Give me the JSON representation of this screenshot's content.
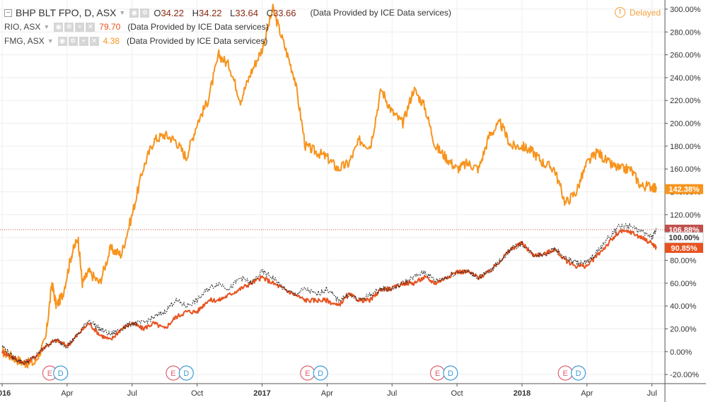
{
  "legend": {
    "main": {
      "collapse_icon": "−",
      "symbol": "BHP BLT FPO, D, ASX",
      "ohlc": [
        {
          "k": "O",
          "v": "34.22"
        },
        {
          "k": "H",
          "v": "34.22"
        },
        {
          "k": "L",
          "v": "33.64"
        },
        {
          "k": "C",
          "v": "33.66"
        }
      ],
      "source": "(Data Provided by ICE Data services)"
    },
    "rio": {
      "symbol": "RIO, ASX",
      "value": "79.70",
      "source": "(Data Provided by ICE Data services)"
    },
    "fmg": {
      "symbol": "FMG, ASX",
      "value": "4.38",
      "source": "(Data Provided by ICE Data services)"
    }
  },
  "delayed": {
    "icon": "!",
    "label": "Delayed"
  },
  "colors": {
    "fmg": "#f7941d",
    "rio": "#e8521f",
    "bhp": "#222222",
    "grid": "#eeeeee",
    "baseline": "#c0504d"
  },
  "chart_data": {
    "type": "line",
    "y_unit": "%",
    "ylim": [
      -28,
      308
    ],
    "y_ticks": [
      "300.00%",
      "280.00%",
      "260.00%",
      "240.00%",
      "220.00%",
      "200.00%",
      "180.00%",
      "160.00%",
      "140.00%",
      "120.00%",
      "100.00%",
      "80.00%",
      "60.00%",
      "40.00%",
      "20.00%",
      "0.00%",
      "-20.00%"
    ],
    "y_tick_values": [
      300,
      280,
      260,
      240,
      220,
      200,
      180,
      160,
      140,
      120,
      100,
      80,
      60,
      40,
      20,
      0,
      -20
    ],
    "x_ticks": [
      {
        "label": "2016",
        "bold": true,
        "m": 0.0
      },
      {
        "label": "Apr",
        "bold": false,
        "m": 3.0
      },
      {
        "label": "Jul",
        "bold": false,
        "m": 6.0
      },
      {
        "label": "Oct",
        "bold": false,
        "m": 9.0
      },
      {
        "label": "2017",
        "bold": true,
        "m": 12.0
      },
      {
        "label": "Apr",
        "bold": false,
        "m": 15.0
      },
      {
        "label": "Jul",
        "bold": false,
        "m": 18.0
      },
      {
        "label": "Oct",
        "bold": false,
        "m": 21.0
      },
      {
        "label": "2018",
        "bold": true,
        "m": 24.0
      },
      {
        "label": "Apr",
        "bold": false,
        "m": 27.0
      },
      {
        "label": "Jul",
        "bold": false,
        "m": 30.0
      }
    ],
    "x_domain_months": [
      -0.1,
      30.6
    ],
    "series": [
      {
        "name": "FMG, ASX",
        "color": "#f7941d",
        "x": [
          0,
          0.5,
          1,
          1.5,
          2,
          2.3,
          2.5,
          2.8,
          3.2,
          3.5,
          3.7,
          4,
          4.5,
          5,
          5.5,
          6,
          6.5,
          7,
          7.5,
          8,
          8.5,
          9,
          9.5,
          10,
          10.5,
          11,
          11.5,
          12,
          12.5,
          13,
          13.5,
          14,
          14.5,
          15,
          15.5,
          16,
          16.5,
          17,
          17.5,
          18,
          18.5,
          19,
          19.5,
          20,
          20.5,
          21,
          21.5,
          22,
          22.5,
          23,
          23.5,
          24,
          24.5,
          25,
          25.5,
          26,
          26.5,
          27,
          27.5,
          28,
          28.5,
          29,
          29.5,
          30,
          30.2
        ],
        "y": [
          0,
          -5,
          -10,
          -10,
          10,
          60,
          40,
          50,
          85,
          100,
          60,
          70,
          60,
          90,
          85,
          120,
          160,
          185,
          190,
          185,
          170,
          200,
          220,
          260,
          250,
          220,
          245,
          265,
          300,
          270,
          240,
          180,
          175,
          170,
          160,
          165,
          185,
          180,
          230,
          210,
          200,
          230,
          215,
          180,
          170,
          160,
          165,
          160,
          190,
          200,
          180,
          180,
          175,
          165,
          160,
          130,
          140,
          165,
          175,
          165,
          160,
          160,
          145,
          145,
          142
        ]
      },
      {
        "name": "RIO, ASX",
        "color": "#e8521f",
        "x": [
          0,
          0.5,
          1,
          1.5,
          2,
          2.5,
          3,
          3.5,
          4,
          4.5,
          5,
          5.5,
          6,
          6.5,
          7,
          7.5,
          8,
          8.5,
          9,
          9.5,
          10,
          10.5,
          11,
          11.5,
          12,
          12.5,
          13,
          13.5,
          14,
          14.5,
          15,
          15.5,
          16,
          16.5,
          17,
          17.5,
          18,
          18.5,
          19,
          19.5,
          20,
          20.5,
          21,
          21.5,
          22,
          22.5,
          23,
          23.5,
          24,
          24.5,
          25,
          25.5,
          26,
          26.5,
          27,
          27.5,
          28,
          28.5,
          29,
          29.5,
          30,
          30.2
        ],
        "y": [
          0,
          -5,
          -10,
          -5,
          5,
          10,
          5,
          15,
          25,
          15,
          10,
          20,
          25,
          20,
          25,
          20,
          30,
          35,
          35,
          45,
          45,
          50,
          55,
          60,
          65,
          60,
          55,
          50,
          45,
          45,
          45,
          40,
          50,
          45,
          45,
          55,
          55,
          60,
          60,
          65,
          60,
          65,
          70,
          70,
          65,
          70,
          80,
          90,
          95,
          85,
          85,
          90,
          80,
          75,
          75,
          85,
          95,
          105,
          105,
          100,
          95,
          91
        ]
      },
      {
        "name": "BHP BLT FPO",
        "color": "#222222",
        "x": [
          0,
          0.5,
          1,
          1.5,
          2,
          2.5,
          3,
          3.5,
          4,
          4.5,
          5,
          5.5,
          6,
          6.5,
          7,
          7.5,
          8,
          8.5,
          9,
          9.5,
          10,
          10.5,
          11,
          11.5,
          12,
          12.5,
          13,
          13.5,
          14,
          14.5,
          15,
          15.5,
          16,
          16.5,
          17,
          17.5,
          18,
          18.5,
          19,
          19.5,
          20,
          20.5,
          21,
          21.5,
          22,
          22.5,
          23,
          23.5,
          24,
          24.5,
          25,
          25.5,
          26,
          26.5,
          27,
          27.5,
          28,
          28.5,
          29,
          29.5,
          30,
          30.2
        ],
        "y": [
          5,
          -5,
          -10,
          -5,
          5,
          10,
          5,
          15,
          28,
          20,
          15,
          20,
          25,
          25,
          30,
          35,
          45,
          40,
          45,
          55,
          60,
          55,
          65,
          60,
          70,
          65,
          55,
          50,
          55,
          50,
          55,
          45,
          50,
          45,
          50,
          55,
          55,
          60,
          65,
          70,
          62,
          65,
          70,
          70,
          65,
          70,
          80,
          90,
          95,
          85,
          85,
          90,
          82,
          78,
          78,
          88,
          100,
          110,
          110,
          105,
          100,
          107
        ]
      }
    ],
    "last_labels": [
      {
        "text": "142.38%",
        "value": 142.38,
        "color": "#f7941d"
      },
      {
        "text": "106.88%",
        "value": 106.88,
        "color": "#c0504d"
      },
      {
        "text": "100.00%",
        "value": 100.0,
        "color": "#ffffff"
      },
      {
        "text": "90.85%",
        "value": 90.85,
        "color": "#e8521f"
      }
    ],
    "baseline_value": 106.88,
    "event_markers": [
      {
        "label": "E",
        "m": 2.2,
        "color": "#e06070"
      },
      {
        "label": "D",
        "m": 2.7,
        "color": "#3a9ad9"
      },
      {
        "label": "E",
        "m": 7.9,
        "color": "#e06070"
      },
      {
        "label": "D",
        "m": 8.5,
        "color": "#3a9ad9"
      },
      {
        "label": "E",
        "m": 14.1,
        "color": "#e06070"
      },
      {
        "label": "D",
        "m": 14.7,
        "color": "#3a9ad9"
      },
      {
        "label": "E",
        "m": 20.1,
        "color": "#e06070"
      },
      {
        "label": "D",
        "m": 20.7,
        "color": "#3a9ad9"
      },
      {
        "label": "E",
        "m": 26.0,
        "color": "#e06070"
      },
      {
        "label": "D",
        "m": 26.6,
        "color": "#3a9ad9"
      }
    ]
  }
}
